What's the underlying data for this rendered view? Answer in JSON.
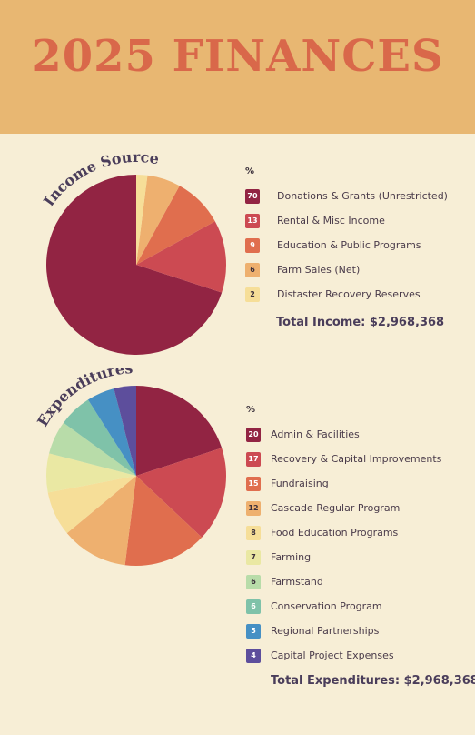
{
  "title": "2025 FINANCES",
  "chart_data": [
    {
      "type": "pie",
      "title": "Income Sources",
      "legend_header": "%",
      "categories": [
        "Donations & Grants (Unrestricted)",
        "Rental & Misc Income",
        "Education & Public Programs",
        "Farm Sales (Net)",
        "Distaster Recovery Reserves"
      ],
      "values": [
        70,
        13,
        9,
        6,
        2
      ],
      "value_labels": [
        "70",
        "13",
        "9",
        "6",
        "2"
      ],
      "colors": [
        "#922443",
        "#cc4a52",
        "#e06e4e",
        "#eeb06f",
        "#f6de98"
      ],
      "label_colors": [
        "#ffffff",
        "#ffffff",
        "#ffffff",
        "#3a2f3a",
        "#3a2f3a"
      ],
      "total": "Total Income: $2,968,368",
      "legend_position": "right"
    },
    {
      "type": "pie",
      "title": "Expenditures",
      "legend_header": "%",
      "categories": [
        "Admin & Facilities",
        "Recovery & Capital Improvements",
        "Fundraising",
        "Cascade Regular Program",
        "Food Education Programs",
        "Farming",
        "Farmstand",
        "Conservation Program",
        "Regional Partnerships",
        "Capital Project Expenses"
      ],
      "values": [
        20,
        17,
        15,
        12,
        8,
        7,
        6,
        6,
        5,
        4
      ],
      "value_labels": [
        "20",
        "17",
        "15",
        "12",
        "8",
        "7",
        "6",
        "6",
        "5",
        "4"
      ],
      "colors": [
        "#922443",
        "#cc4a52",
        "#e06e4e",
        "#eeb06f",
        "#f6de98",
        "#eae8a3",
        "#b8dca9",
        "#7fc2a9",
        "#4690c4",
        "#5d4e9c"
      ],
      "label_colors": [
        "#ffffff",
        "#ffffff",
        "#ffffff",
        "#3a2f3a",
        "#3a2f3a",
        "#3a2f3a",
        "#3a2f3a",
        "#ffffff",
        "#ffffff",
        "#ffffff"
      ],
      "total": "Total Expenditures: $2,968,368",
      "legend_position": "right"
    }
  ]
}
